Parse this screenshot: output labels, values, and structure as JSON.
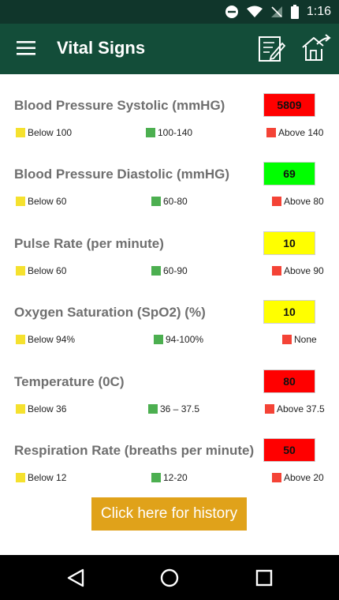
{
  "status": {
    "time": "1:16"
  },
  "app": {
    "title": "Vital Signs"
  },
  "colors": {
    "statusbar": "#10362b",
    "appbar": "#134d39",
    "yellow": "#f5e12e",
    "green": "#4caf50",
    "red": "#f44336",
    "button": "#e0a21a"
  },
  "vitals": [
    {
      "label": "Blood Pressure Systolic (mmHG)",
      "value": "5809",
      "value_color": "#ff0000",
      "legend": [
        {
          "text": "Below 100",
          "color": "#f5e12e"
        },
        {
          "text": "100-140",
          "color": "#4caf50"
        },
        {
          "text": "Above 140",
          "color": "#f44336"
        }
      ]
    },
    {
      "label": "Blood Pressure Diastolic (mmHG)",
      "value": "69",
      "value_color": "#00ff00",
      "legend": [
        {
          "text": "Below 60",
          "color": "#f5e12e"
        },
        {
          "text": "60-80",
          "color": "#4caf50"
        },
        {
          "text": "Above 80",
          "color": "#f44336"
        }
      ]
    },
    {
      "label": "Pulse Rate (per minute)",
      "value": "10",
      "value_color": "#ffff00",
      "legend": [
        {
          "text": "Below 60",
          "color": "#f5e12e"
        },
        {
          "text": "60-90",
          "color": "#4caf50"
        },
        {
          "text": "Above 90",
          "color": "#f44336"
        }
      ]
    },
    {
      "label": "Oxygen Saturation (SpO2) (%)",
      "value": "10",
      "value_color": "#ffff00",
      "legend": [
        {
          "text": "Below 94%",
          "color": "#f5e12e"
        },
        {
          "text": "94-100%",
          "color": "#4caf50"
        },
        {
          "text": "None",
          "color": "#f44336"
        }
      ]
    },
    {
      "label": "Temperature (0C)",
      "value": "80",
      "value_color": "#ff0000",
      "legend": [
        {
          "text": "Below 36",
          "color": "#f5e12e"
        },
        {
          "text": "36 – 37.5",
          "color": "#4caf50"
        },
        {
          "text": "Above 37.5",
          "color": "#f44336"
        }
      ]
    },
    {
      "label": "Respiration Rate (breaths per minute)",
      "value": "50",
      "value_color": "#ff0000",
      "legend": [
        {
          "text": "Below 12",
          "color": "#f5e12e"
        },
        {
          "text": "12-20",
          "color": "#4caf50"
        },
        {
          "text": "Above 20",
          "color": "#f44336"
        }
      ]
    }
  ],
  "history_button": {
    "label": "Click here for history"
  }
}
